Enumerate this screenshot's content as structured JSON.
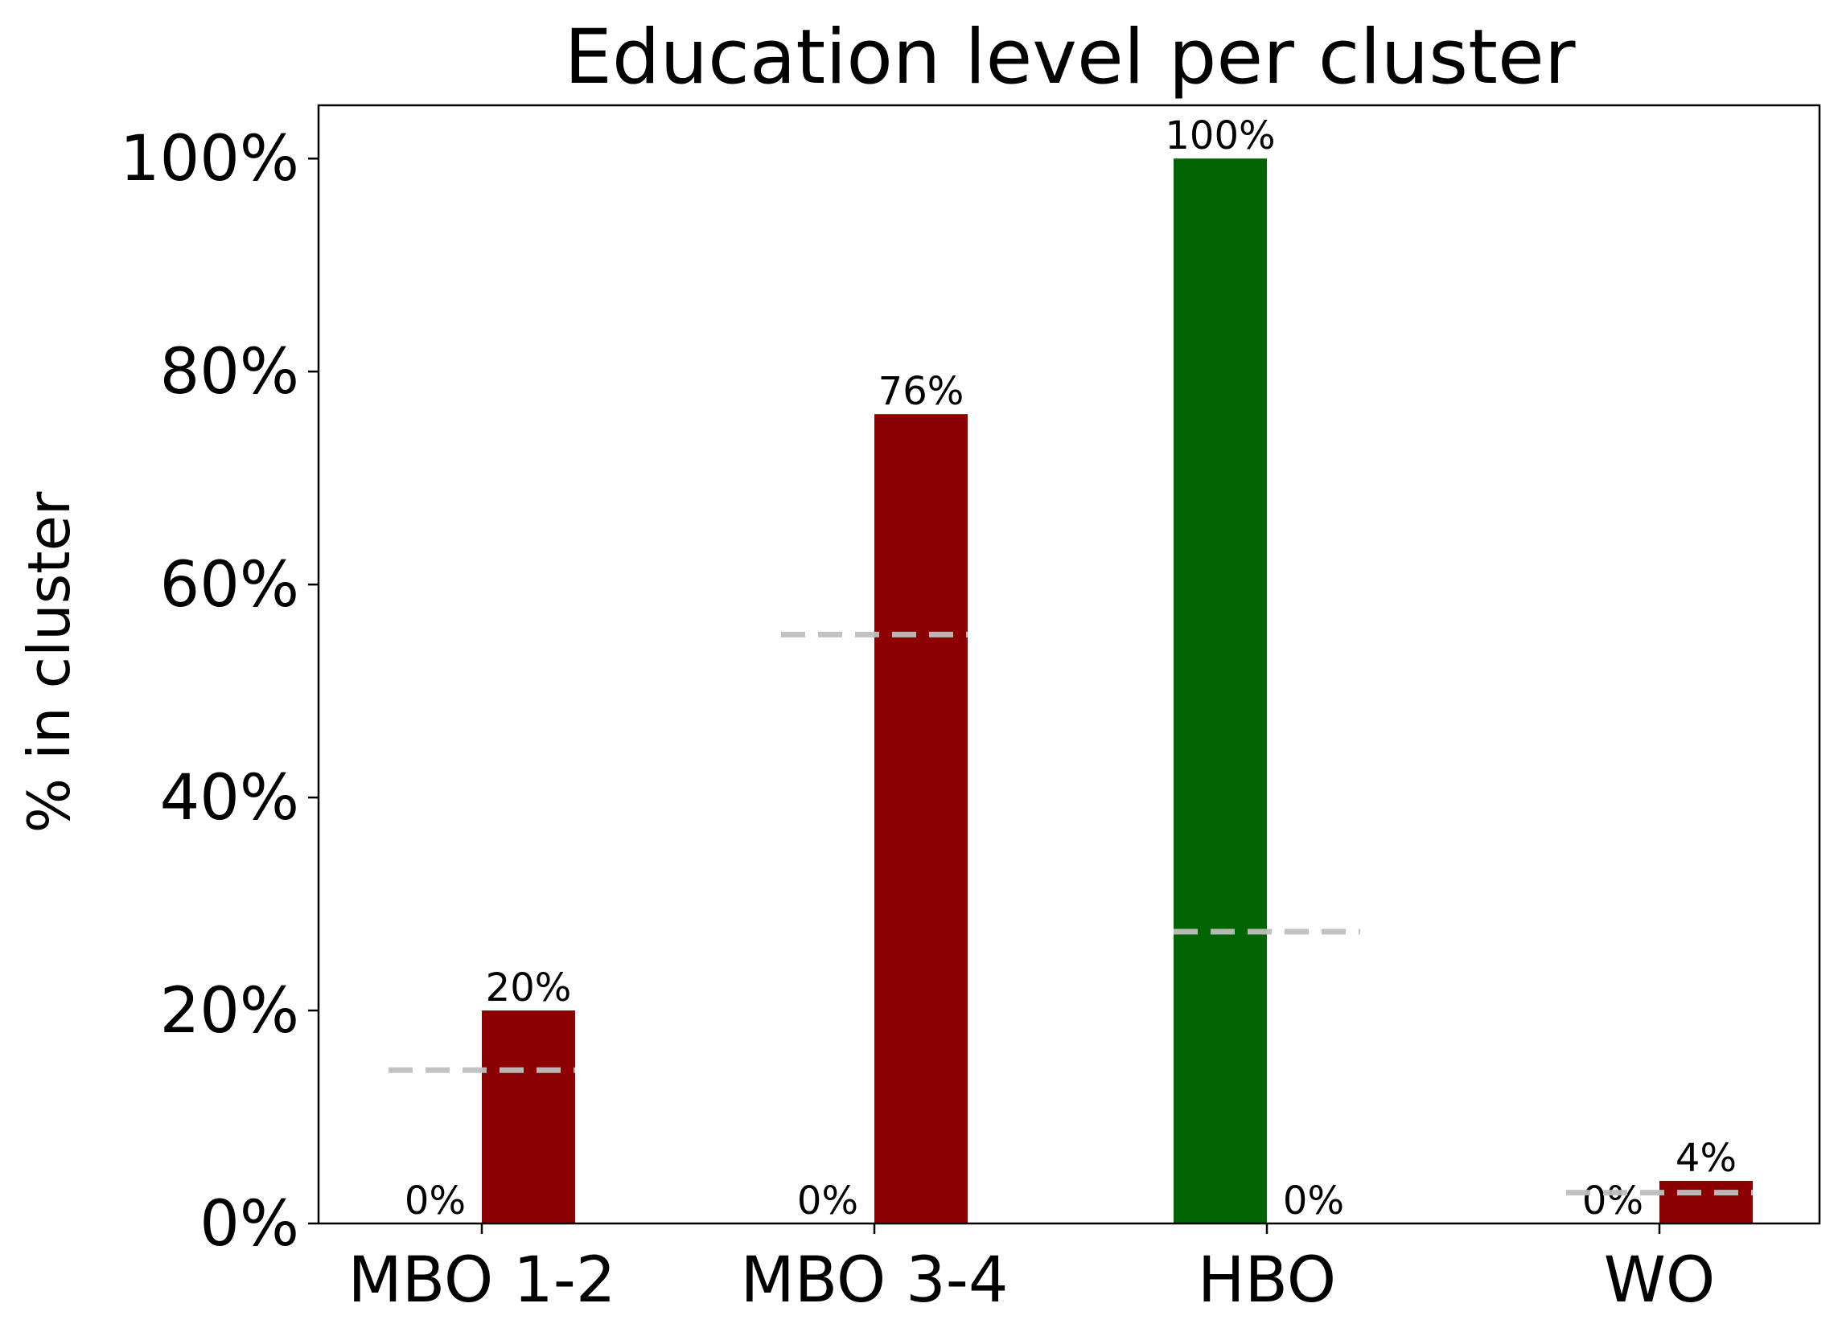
{
  "chart_data": {
    "type": "bar",
    "title": "Education level per cluster",
    "xlabel": "",
    "ylabel": "% in cluster",
    "ylim": [
      0,
      105
    ],
    "yticks": [
      0,
      20,
      40,
      60,
      80,
      100
    ],
    "ytick_labels": [
      "0%",
      "20%",
      "40%",
      "60%",
      "80%",
      "100%"
    ],
    "categories": [
      "MBO 1-2",
      "MBO 3-4",
      "HBO",
      "WO"
    ],
    "series": [
      {
        "values": [
          0,
          0,
          100,
          0
        ],
        "labels": [
          "0%",
          "0%",
          "100%",
          "0%"
        ],
        "color": "#006400"
      },
      {
        "values": [
          20,
          76,
          0,
          4
        ],
        "labels": [
          "20%",
          "76%",
          "0%",
          "4%"
        ],
        "color": "#8b0000"
      }
    ],
    "reference_lines": {
      "values": [
        14.4,
        55.3,
        27.4,
        2.9
      ],
      "color": "#bfbfbf",
      "style": "dashed"
    },
    "grid": false,
    "legend": "none"
  }
}
